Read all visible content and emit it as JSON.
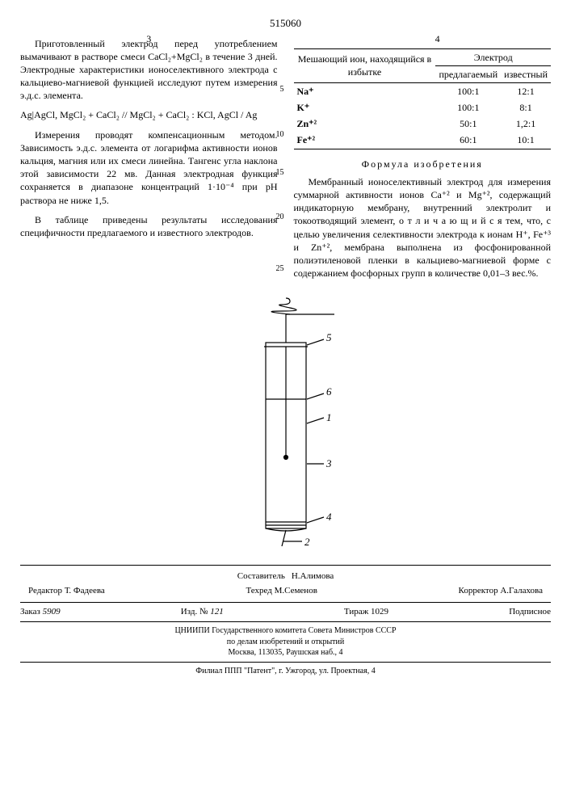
{
  "docnum": "515060",
  "page_l": "3",
  "page_r": "4",
  "left": {
    "p1": "Приготовленный электрод перед употреблением вымачивают в растворе смеси CaCl₂+MgCl₂ в течение 3 дней. Электродные характеристики ионоселективного электрода с кальциево-магниевой функцией исследуют путем измерения э.д.с. элемента.",
    "eqn": "Ag|AgCl, MgCl₂ + CaCl₂ // MgCl₂ + CaCl₂ : KCl, AgCl / Ag",
    "p2": "Измерения проводят компенсационным методом. Зависимость э.д.с. элемента от логарифма активности ионов кальция, магния или их смеси линейна. Тангенс угла наклона этой зависимости 22 мв. Данная электродная функция сохраняется в диапазоне концентраций 1·10⁻⁴ при pH раствора не ниже 1,5.",
    "p3": "В таблице приведены результаты исследования специфичности предлагаемого и известного электродов.",
    "ln5": "5",
    "ln10": "10",
    "ln15": "15",
    "ln20": "20",
    "ln25": "25"
  },
  "table": {
    "h1": "Мешающий ион, находящийся в избытке",
    "h2": "Электрод",
    "h3": "предлагаемый",
    "h4": "известный",
    "rows": [
      [
        "Na⁺",
        "100:1",
        "12:1"
      ],
      [
        "K⁺",
        "100:1",
        "8:1"
      ],
      [
        "Zn⁺²",
        "50:1",
        "1,2:1"
      ],
      [
        "Fe⁺²",
        "60:1",
        "10:1"
      ]
    ]
  },
  "formula_title": "Формула изобретения",
  "right": {
    "p1": "Мембранный ионоселективный электрод для измерения суммарной активности ионов Ca⁺² и Mg⁺², содержащий индикаторную мембрану, внутренний электролит и токоотводящий элемент, о т л и ч а ю щ и й с я  тем, что, с целью увеличения селективности электрода к ионам H⁺, Fe⁺³ и Zn⁺², мембрана выполнена из фосфонированной полиэтиленовой пленки в кальциево-магниевой форме с содержанием фосфорных групп в количестве 0,01–3 вес.%."
  },
  "diagram": {
    "labels": {
      "l1": "1",
      "l2": "2",
      "l3": "3",
      "l4": "4",
      "l5": "5",
      "l6": "6"
    },
    "stroke": "#000"
  },
  "credits": {
    "composer_l": "Составитель",
    "composer": "Н.Алимова",
    "editor_l": "Редактор",
    "editor": "Т. Фадеева",
    "techred_l": "Техред",
    "techred": "М.Семенов",
    "corrector_l": "Корректор",
    "corrector": "А.Галахова"
  },
  "footer1": {
    "zakaz_l": "Заказ",
    "zakaz": "5909",
    "izd_l": "Изд. №",
    "izd": "121",
    "tiraz_l": "Тираж",
    "tiraz": "1029",
    "pod": "Подписное"
  },
  "footer2": "ЦНИИПИ Государственного комитета Совета Министров СССР\nпо делам изобретений и открытий\nМосква, 113035, Раушская наб., 4",
  "footer3": "Филиал ППП \"Патент\", г. Ужгород, ул. Проектная, 4"
}
